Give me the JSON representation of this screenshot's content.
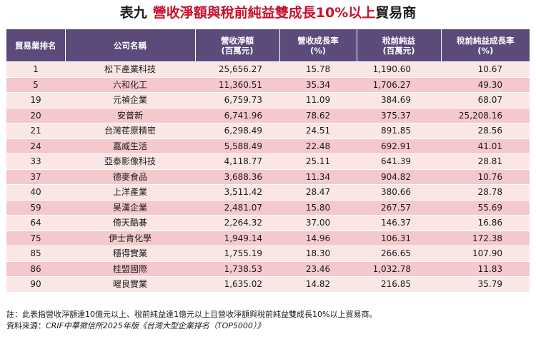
{
  "title": {
    "prefix": "表九",
    "main": "營收淨額與稅前純益雙成長10%以上",
    "suffix": "貿易商"
  },
  "table": {
    "headers": [
      {
        "line1": "貿易業排名",
        "line2": ""
      },
      {
        "line1": "公司名稱",
        "line2": ""
      },
      {
        "line1": "營收淨額",
        "line2": "(百萬元)"
      },
      {
        "line1": "營收成長率",
        "line2": "(%)"
      },
      {
        "line1": "稅前純益",
        "line2": "(百萬元)"
      },
      {
        "line1": "稅前純益成長率",
        "line2": "(%)"
      }
    ],
    "rows": [
      {
        "rank": "1",
        "name": "松下產業科技",
        "revenue": "25,656.27",
        "revenue_growth": "15.78",
        "profit": "1,190.60",
        "profit_growth": "10.67"
      },
      {
        "rank": "5",
        "name": "六和化工",
        "revenue": "11,360.51",
        "revenue_growth": "35.34",
        "profit": "1,706.27",
        "profit_growth": "49.30"
      },
      {
        "rank": "19",
        "name": "元禎企業",
        "revenue": "6,759.73",
        "revenue_growth": "11.09",
        "profit": "384.69",
        "profit_growth": "68.07"
      },
      {
        "rank": "20",
        "name": "安普新",
        "revenue": "6,741.96",
        "revenue_growth": "78.62",
        "profit": "375.37",
        "profit_growth": "25,208.16"
      },
      {
        "rank": "21",
        "name": "台灣荏原精密",
        "revenue": "6,298.49",
        "revenue_growth": "24.51",
        "profit": "891.85",
        "profit_growth": "28.56"
      },
      {
        "rank": "24",
        "name": "嘉威生活",
        "revenue": "5,588.49",
        "revenue_growth": "22.48",
        "profit": "692.91",
        "profit_growth": "41.01"
      },
      {
        "rank": "33",
        "name": "亞泰影像科技",
        "revenue": "4,118.77",
        "revenue_growth": "25.11",
        "profit": "641.39",
        "profit_growth": "28.81"
      },
      {
        "rank": "37",
        "name": "德麥食品",
        "revenue": "3,688.36",
        "revenue_growth": "11.34",
        "profit": "904.82",
        "profit_growth": "10.76"
      },
      {
        "rank": "40",
        "name": "上洋產業",
        "revenue": "3,511.42",
        "revenue_growth": "28.47",
        "profit": "380.66",
        "profit_growth": "28.78"
      },
      {
        "rank": "59",
        "name": "昊漢企業",
        "revenue": "2,481.07",
        "revenue_growth": "15.80",
        "profit": "267.57",
        "profit_growth": "55.69"
      },
      {
        "rank": "64",
        "name": "倚天酷碁",
        "revenue": "2,264.32",
        "revenue_growth": "37.00",
        "profit": "146.37",
        "profit_growth": "16.86"
      },
      {
        "rank": "75",
        "name": "伊士肯化學",
        "revenue": "1,949.14",
        "revenue_growth": "14.96",
        "profit": "106.31",
        "profit_growth": "172.38"
      },
      {
        "rank": "85",
        "name": "穩得實業",
        "revenue": "1,755.19",
        "revenue_growth": "18.30",
        "profit": "266.65",
        "profit_growth": "107.90"
      },
      {
        "rank": "86",
        "name": "桂盟國際",
        "revenue": "1,738.53",
        "revenue_growth": "23.46",
        "profit": "1,032.78",
        "profit_growth": "11.83"
      },
      {
        "rank": "90",
        "name": "曜良實業",
        "revenue": "1,635.02",
        "revenue_growth": "14.82",
        "profit": "216.85",
        "profit_growth": "35.79"
      }
    ]
  },
  "notes": {
    "note_label": "註：",
    "note_text": "此表指營收淨額達10億元以上、稅前純益達1億元以上且營收淨額與稅前純益雙成長10%以上貿易商。",
    "source_label": "資料來源：",
    "source_text": "CRIF中華徵信所2025年版《台灣大型企業排名（TOP5000）》"
  },
  "colors": {
    "header_bg": "#5b4a7a",
    "row_light": "#fbe6e6",
    "row_dark": "#f5c9cc",
    "title_accent": "#c8102e"
  }
}
